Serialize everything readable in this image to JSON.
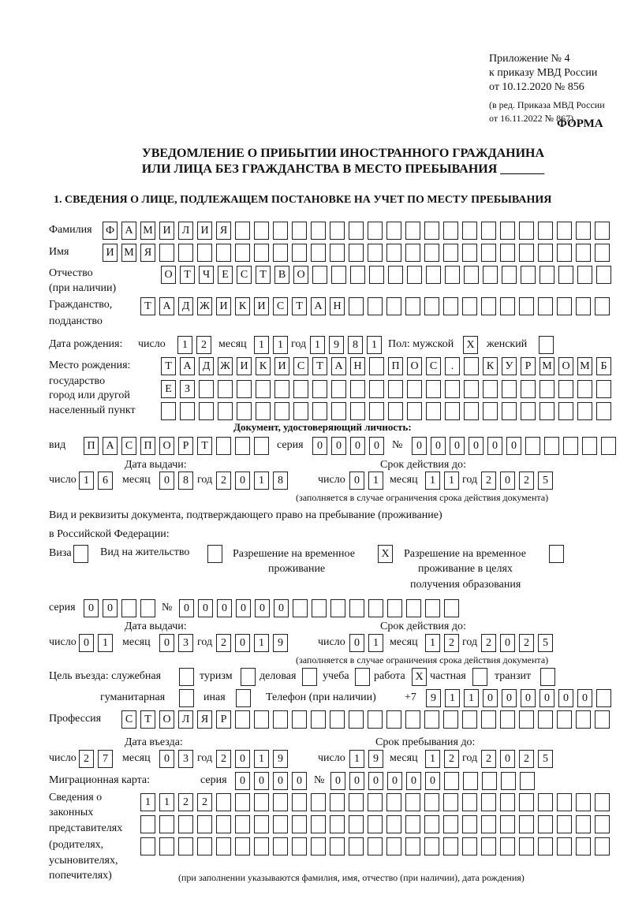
{
  "header": {
    "appendix": [
      "Приложение № 4",
      "к приказу МВД России",
      "от 10.12.2020 № 856"
    ],
    "edition": [
      "(в ред. Приказа МВД России",
      "от 16.11.2022 № 867)"
    ],
    "form_label": "ФОРМА",
    "title": [
      "УВЕДОМЛЕНИЕ О ПРИБЫТИИ ИНОСТРАННОГО ГРАЖДАНИНА",
      "ИЛИ ЛИЦА БЕЗ ГРАЖДАНСТВА В МЕСТО ПРЕБЫВАНИЯ _______"
    ],
    "section1": "1. СВЕДЕНИЯ О ЛИЦЕ, ПОДЛЕЖАЩЕМ ПОСТАНОВКЕ НА УЧЕТ ПО МЕСТУ ПРЕБЫВАНИЯ"
  },
  "labels": {
    "surname": "Фамилия",
    "name": "Имя",
    "patronymic": "Отчество",
    "patronymic_note": "(при наличии)",
    "citizenship": [
      "Гражданство,",
      "подданство"
    ],
    "birth_date": "Дата рождения:",
    "day": "число",
    "month": "месяц",
    "year": "год",
    "sex": "Пол: мужской",
    "female": "женский",
    "birthplace": [
      "Место рождения:",
      "государство",
      "город или другой",
      "населенный пункт"
    ],
    "id_doc": "Документ, удостоверяющий личность:",
    "kind": "вид",
    "series": "серия",
    "number": "№",
    "issue_date": "Дата выдачи:",
    "valid_until": "Срок действия до:",
    "valid_note": "(заполняется в случае ограничения срока действия документа)",
    "stay_doc": [
      "Вид и реквизиты документа, подтверждающего право на пребывание (проживание)",
      "в Российской Федерации:"
    ],
    "visa": "Виза",
    "residence": "Вид на жительство",
    "temp_permit": [
      "Разрешение на временное",
      "проживание"
    ],
    "temp_permit_edu": [
      "Разрешение на временное",
      "проживание в целях",
      "получения образования"
    ],
    "purpose": "Цель въезда: служебная",
    "tourism": "туризм",
    "business": "деловая",
    "study": "учеба",
    "work": "работа",
    "private": "частная",
    "transit": "транзит",
    "humanitarian": "гуманитарная",
    "other": "иная",
    "phone": "Телефон (при наличии)",
    "phone_prefix": "+7",
    "profession": "Профессия",
    "entry_date": "Дата въезда:",
    "stay_until": "Срок пребывания до:",
    "migration_card": "Миграционная карта:",
    "representatives": [
      "Сведения о",
      "законных",
      "представителях",
      "(родителях,",
      "усыновителях,",
      "попечителях)"
    ],
    "representatives_note": "(при заполнении указываются фамилия, имя, отчество (при наличии), дата рождения)"
  },
  "fields": {
    "surname": "ФАМИЛИЯ",
    "name": "ИМЯ",
    "patronymic": "ОТЧЕСТВО",
    "citizenship": "ТАДЖИКИСТАН",
    "birth": {
      "day": "12",
      "month": "11",
      "year": "1981"
    },
    "sex_male": "X",
    "sex_female": "",
    "birthplace": [
      "ТАДЖИКИСТАН ПОС. КУРМОМБ",
      "ЕЗ",
      ""
    ],
    "id_doc": {
      "kind": "ПАСПОРТ",
      "series": "0000",
      "number": "000000",
      "issue": {
        "day": "16",
        "month": "08",
        "year": "2018"
      },
      "valid": {
        "day": "01",
        "month": "11",
        "year": "2025"
      }
    },
    "stay_doc": {
      "visa": "",
      "residence": "",
      "temp_permit": "X",
      "temp_permit_edu": "",
      "series": "00",
      "number": "000000",
      "issue": {
        "day": "01",
        "month": "03",
        "year": "2019"
      },
      "valid": {
        "day": "01",
        "month": "12",
        "year": "2025"
      }
    },
    "purpose": {
      "official": "",
      "tourism": "",
      "business": "",
      "study": "",
      "work": "X",
      "private": "",
      "transit": "",
      "humanitarian": "",
      "other": ""
    },
    "phone": "911000000",
    "profession": "СТОЛЯР",
    "entry": {
      "day": "27",
      "month": "03",
      "year": "2019"
    },
    "stay_until": {
      "day": "19",
      "month": "12",
      "year": "2025"
    },
    "migration_card": {
      "series": "0000",
      "number": "000000"
    },
    "representatives": [
      "1122",
      "",
      ""
    ]
  }
}
